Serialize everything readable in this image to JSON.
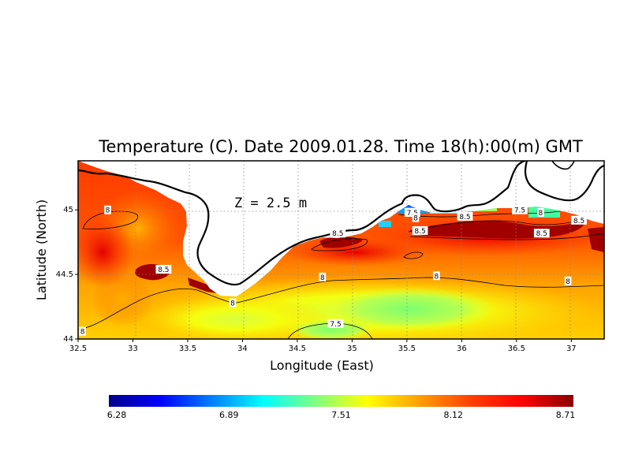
{
  "chart_data": {
    "type": "heatmap",
    "title": "Temperature (C). Date 2009.01.28. Time 18(h):00(m) GMT",
    "annotation": "Z = 2.5 m",
    "xlabel": "Longitude (East)",
    "ylabel": "Latitude (North)",
    "xlim": [
      32.5,
      37.3
    ],
    "ylim": [
      44.0,
      45.38
    ],
    "x_ticks": [
      "32.5",
      "33",
      "33.5",
      "34",
      "34.5",
      "35",
      "35.5",
      "36",
      "36.5",
      "37"
    ],
    "x_tick_values": [
      32.5,
      33.0,
      33.5,
      34.0,
      34.5,
      35.0,
      35.5,
      36.0,
      36.5,
      37.0
    ],
    "y_ticks": [
      "44",
      "44.5",
      "45"
    ],
    "y_tick_values": [
      44.0,
      44.5,
      45.0
    ],
    "grid": true,
    "colorbar": {
      "min": 6.28,
      "max": 8.71,
      "ticks": [
        "6.28",
        "6.89",
        "7.51",
        "8.12",
        "8.71"
      ],
      "colors": [
        "#00008b",
        "#0000ff",
        "#0080ff",
        "#00ffff",
        "#80ff80",
        "#ffff00",
        "#ffa000",
        "#ff4000",
        "#ff0000",
        "#8b0000"
      ]
    },
    "contour_labels": [
      {
        "text": "8",
        "lon": 32.77,
        "lat": 45.0
      },
      {
        "text": "8.5",
        "lon": 33.28,
        "lat": 44.54
      },
      {
        "text": "8",
        "lon": 33.91,
        "lat": 44.28
      },
      {
        "text": "8",
        "lon": 34.73,
        "lat": 44.48
      },
      {
        "text": "8.5",
        "lon": 34.87,
        "lat": 44.82
      },
      {
        "text": "7.5",
        "lon": 34.85,
        "lat": 44.12
      },
      {
        "text": "8",
        "lon": 35.77,
        "lat": 44.49
      },
      {
        "text": "7.5",
        "lon": 35.55,
        "lat": 44.98
      },
      {
        "text": "8",
        "lon": 35.58,
        "lat": 44.94
      },
      {
        "text": "8.5",
        "lon": 35.62,
        "lat": 44.84
      },
      {
        "text": "8.5",
        "lon": 36.03,
        "lat": 44.95
      },
      {
        "text": "7.5",
        "lon": 36.53,
        "lat": 45.0
      },
      {
        "text": "8",
        "lon": 36.72,
        "lat": 44.98
      },
      {
        "text": "8.5",
        "lon": 36.73,
        "lat": 44.82
      },
      {
        "text": "8.5",
        "lon": 37.07,
        "lat": 44.92
      },
      {
        "text": "8",
        "lon": 36.97,
        "lat": 44.45
      },
      {
        "text": "8",
        "lon": 32.54,
        "lat": 44.06
      }
    ]
  }
}
